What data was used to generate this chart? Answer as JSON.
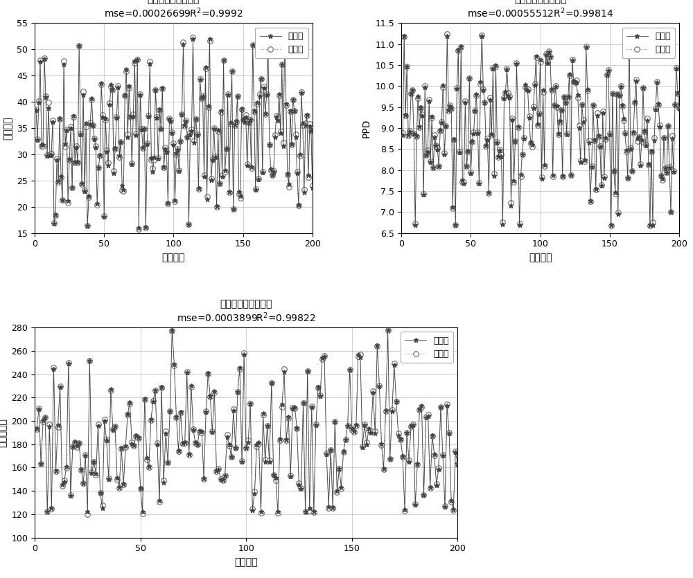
{
  "plots": [
    {
      "title": "测试集预测结果对比",
      "subtitle": "mse=0.00026699R$^2$=0.9992",
      "ylabel": "建筑能耗",
      "xlabel": "样本编号",
      "ylim": [
        15,
        55
      ],
      "yticks": [
        15,
        20,
        25,
        30,
        35,
        40,
        45,
        50,
        55
      ],
      "xlim": [
        0,
        200
      ],
      "xticks": [
        0,
        50,
        100,
        150,
        200
      ],
      "seed": 42,
      "y_mean": 34,
      "y_std": 9,
      "y_min": 16,
      "y_max": 52,
      "noise_scale": 0.03
    },
    {
      "title": "测试集预测结果对比",
      "subtitle": "mse=0.00055512R$^2$=0.99814",
      "ylabel": "PPD",
      "xlabel": "样本编号",
      "ylim": [
        6.5,
        11.5
      ],
      "yticks": [
        6.5,
        7.0,
        7.5,
        8.0,
        8.5,
        9.0,
        9.5,
        10.0,
        10.5,
        11.0,
        11.5
      ],
      "xlim": [
        0,
        200
      ],
      "xticks": [
        0,
        50,
        100,
        150,
        200
      ],
      "seed": 99,
      "y_mean": 9.0,
      "y_std": 1.1,
      "y_min": 6.7,
      "y_max": 11.2,
      "noise_scale": 0.025
    },
    {
      "title": "测试集预测结果对比",
      "subtitle": "mse=0.0003899R$^2$=0.99822",
      "ylabel": "初投资成本",
      "xlabel": "样本编号",
      "ylim": [
        100,
        280
      ],
      "yticks": [
        100,
        120,
        140,
        160,
        180,
        200,
        220,
        240,
        260,
        280
      ],
      "xlim": [
        0,
        200
      ],
      "xticks": [
        0,
        50,
        100,
        150,
        200
      ],
      "seed": 77,
      "y_mean": 185,
      "y_std": 38,
      "y_min": 122,
      "y_max": 278,
      "noise_scale": 0.025
    }
  ],
  "legend_actual": "真实值",
  "legend_pred": "预测值",
  "line_color": "#444444",
  "pred_line_color": "#666666",
  "bg_color": "#ffffff",
  "grid_color": "#bbbbbb",
  "n_samples": 200
}
